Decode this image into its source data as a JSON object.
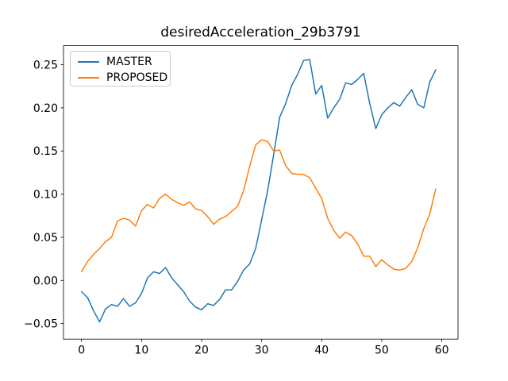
{
  "chart_data": {
    "type": "line",
    "title": "desiredAcceleration_29b3791",
    "xlabel": "",
    "ylabel": "",
    "grid": false,
    "legend_position": "upper-left",
    "xlim": [
      -3.0,
      62.7
    ],
    "ylim": [
      -0.068,
      0.272
    ],
    "xticks": [
      0,
      10,
      20,
      30,
      40,
      50,
      60
    ],
    "yticks": [
      -0.05,
      0.0,
      0.05,
      0.1,
      0.15,
      0.2,
      0.25
    ],
    "x": [
      0,
      1,
      2,
      3,
      4,
      5,
      6,
      7,
      8,
      9,
      10,
      11,
      12,
      13,
      14,
      15,
      16,
      17,
      18,
      19,
      20,
      21,
      22,
      23,
      24,
      25,
      26,
      27,
      28,
      29,
      30,
      31,
      32,
      33,
      34,
      35,
      36,
      37,
      38,
      39,
      40,
      41,
      42,
      43,
      44,
      45,
      46,
      47,
      48,
      49,
      50,
      51,
      52,
      53,
      54,
      55,
      56,
      57,
      58,
      59
    ],
    "series": [
      {
        "name": "MASTER",
        "color": "#1f77b4",
        "values": [
          -0.013,
          -0.02,
          -0.035,
          -0.048,
          -0.033,
          -0.028,
          -0.03,
          -0.021,
          -0.03,
          -0.026,
          -0.015,
          0.003,
          0.01,
          0.008,
          0.015,
          0.003,
          -0.005,
          -0.013,
          -0.024,
          -0.031,
          -0.034,
          -0.027,
          -0.029,
          -0.022,
          -0.011,
          -0.011,
          -0.001,
          0.012,
          0.019,
          0.037,
          0.07,
          0.104,
          0.146,
          0.189,
          0.205,
          0.226,
          0.239,
          0.255,
          0.256,
          0.216,
          0.226,
          0.188,
          0.2,
          0.21,
          0.229,
          0.227,
          0.233,
          0.24,
          0.205,
          0.176,
          0.192,
          0.2,
          0.206,
          0.202,
          0.212,
          0.221,
          0.204,
          0.2,
          0.23,
          0.244
        ]
      },
      {
        "name": "PROPOSED",
        "color": "#ff7f0e",
        "values": [
          0.01,
          0.022,
          0.03,
          0.037,
          0.045,
          0.05,
          0.069,
          0.072,
          0.07,
          0.063,
          0.081,
          0.088,
          0.084,
          0.095,
          0.1,
          0.094,
          0.09,
          0.087,
          0.091,
          0.083,
          0.081,
          0.074,
          0.065,
          0.071,
          0.074,
          0.08,
          0.086,
          0.104,
          0.132,
          0.157,
          0.163,
          0.161,
          0.15,
          0.151,
          0.133,
          0.124,
          0.123,
          0.123,
          0.119,
          0.107,
          0.095,
          0.072,
          0.058,
          0.049,
          0.056,
          0.052,
          0.042,
          0.028,
          0.028,
          0.016,
          0.024,
          0.018,
          0.013,
          0.012,
          0.014,
          0.022,
          0.038,
          0.06,
          0.077,
          0.106
        ]
      }
    ]
  }
}
